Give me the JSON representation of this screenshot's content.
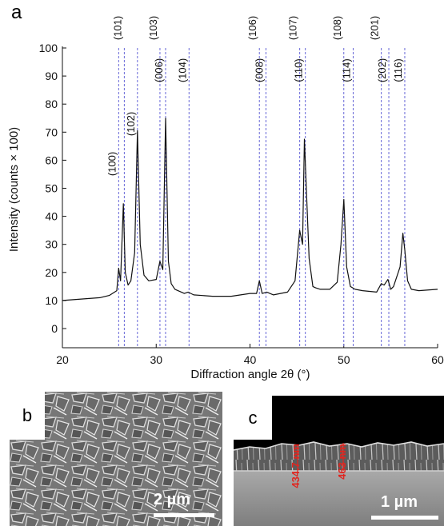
{
  "panels": {
    "a": {
      "letter": "a"
    },
    "b": {
      "letter": "b",
      "scale": "2 µm"
    },
    "c": {
      "letter": "c",
      "scale": "1 µm",
      "thickness_1": "434.7 nm",
      "thickness_2": "463 nm"
    }
  },
  "chart_data": {
    "type": "line",
    "title": "",
    "xlabel": "Diffraction angle 2θ (°)",
    "ylabel": "Intensity (counts × 100)",
    "xlim": [
      20,
      60
    ],
    "ylim": [
      0,
      100
    ],
    "x_ticks": [
      20,
      30,
      40,
      50,
      60
    ],
    "y_ticks": [
      0,
      10,
      20,
      30,
      40,
      50,
      60,
      70,
      80,
      90,
      100
    ],
    "grid": false,
    "legend": "none",
    "series": [
      {
        "color": "#111111",
        "x": [
          20,
          22,
          24,
          25,
          25.8,
          26.0,
          26.2,
          26.5,
          26.7,
          27.0,
          27.3,
          27.7,
          28.0,
          28.3,
          28.7,
          29.2,
          30.0,
          30.4,
          30.7,
          31.0,
          31.3,
          31.6,
          32.0,
          33.0,
          33.4,
          34,
          36,
          38,
          40,
          40.7,
          41.0,
          41.3,
          41.8,
          42.5,
          44,
          44.8,
          45.3,
          45.6,
          45.8,
          46.0,
          46.3,
          46.7,
          47.0,
          47.5,
          48.5,
          49.3,
          49.7,
          50.0,
          50.3,
          50.7,
          51.2,
          52,
          53.5,
          54.0,
          54.3,
          54.7,
          55.0,
          55.3,
          56.0,
          56.3,
          56.5,
          56.8,
          57.2,
          58,
          60
        ],
        "y": [
          10,
          10.5,
          11,
          11.8,
          13.5,
          21.5,
          17,
          44.5,
          20,
          15.5,
          17,
          27,
          70.5,
          30,
          19,
          17,
          17.5,
          24,
          21,
          75,
          24,
          16,
          14,
          12.5,
          13,
          12,
          11.5,
          11.5,
          12.5,
          12.5,
          17,
          12.5,
          13,
          12,
          13,
          17,
          35,
          30,
          67.5,
          50,
          25,
          15,
          14.5,
          14,
          14,
          16.5,
          30,
          46,
          22,
          15,
          14,
          13.5,
          13,
          16,
          15.5,
          17.5,
          14,
          15,
          22,
          34,
          28,
          17,
          14,
          13.5,
          14
        ]
      }
    ],
    "reference_lines": [
      {
        "x": 26.0,
        "label": "(100)"
      },
      {
        "x": 26.6,
        "label": "(101)"
      },
      {
        "x": 28.0,
        "label": "(102)"
      },
      {
        "x": 30.4,
        "label": "(103)"
      },
      {
        "x": 31.0,
        "label": "(006)"
      },
      {
        "x": 33.5,
        "label": "(104)"
      },
      {
        "x": 41.0,
        "label": "(106)"
      },
      {
        "x": 41.7,
        "label": "(008)"
      },
      {
        "x": 45.3,
        "label": "(107)"
      },
      {
        "x": 45.9,
        "label": "(110)"
      },
      {
        "x": 50.0,
        "label": "(108)"
      },
      {
        "x": 51.0,
        "label": "(114)"
      },
      {
        "x": 54.0,
        "label": "(201)"
      },
      {
        "x": 54.8,
        "label": "(202)"
      },
      {
        "x": 56.5,
        "label": "(116)"
      }
    ]
  }
}
